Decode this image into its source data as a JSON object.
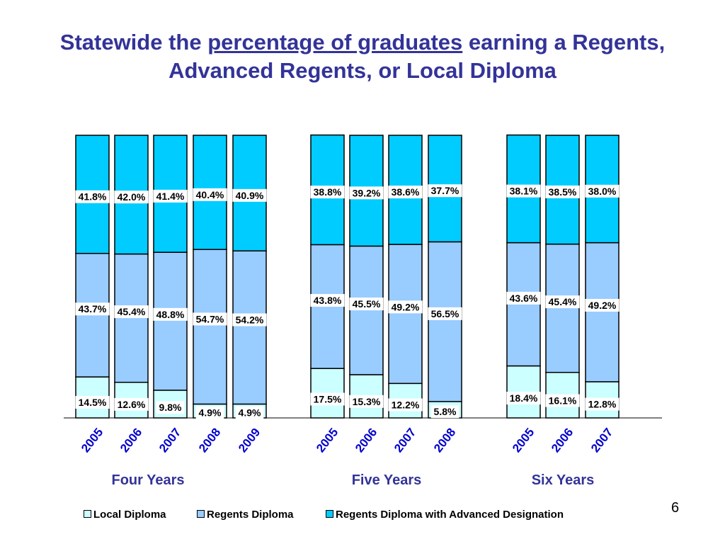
{
  "title": {
    "pre": "Statewide the ",
    "underlined": "percentage of graduates",
    "post": " earning a Regents,",
    "line2": "Advanced Regents, or Local Diploma"
  },
  "slide_number": "6",
  "colors": {
    "local": "#ccffff",
    "regents": "#99ccff",
    "advanced": "#00ccff",
    "group_label": "#333399",
    "year_label": "#0000cc"
  },
  "legend": {
    "local": "Local Diploma",
    "regents": "Regents Diploma",
    "advanced": "Regents Diploma with Advanced Designation"
  },
  "chart_data": {
    "type": "bar",
    "stacked": true,
    "normalized_to_100": true,
    "series_order": [
      "Local Diploma",
      "Regents Diploma",
      "Regents Diploma with Advanced Designation"
    ],
    "groups": [
      {
        "label": "Four Years",
        "categories": [
          "2005",
          "2006",
          "2007",
          "2008",
          "2009"
        ],
        "series": [
          {
            "name": "Local Diploma",
            "values": [
              14.5,
              12.6,
              9.8,
              4.9,
              4.9
            ]
          },
          {
            "name": "Regents Diploma",
            "values": [
              43.7,
              45.4,
              48.8,
              54.7,
              54.2
            ]
          },
          {
            "name": "Regents Diploma with Advanced Designation",
            "values": [
              41.8,
              42.0,
              41.4,
              40.4,
              40.9
            ]
          }
        ]
      },
      {
        "label": "Five Years",
        "categories": [
          "2005",
          "2006",
          "2007",
          "2008"
        ],
        "series": [
          {
            "name": "Local Diploma",
            "values": [
              17.5,
              15.3,
              12.2,
              5.8
            ]
          },
          {
            "name": "Regents Diploma",
            "values": [
              43.8,
              45.5,
              49.2,
              56.5
            ]
          },
          {
            "name": "Regents Diploma with Advanced Designation",
            "values": [
              38.8,
              39.2,
              38.6,
              37.7
            ]
          }
        ]
      },
      {
        "label": "Six Years",
        "categories": [
          "2005",
          "2006",
          "2007"
        ],
        "series": [
          {
            "name": "Local Diploma",
            "values": [
              18.4,
              16.1,
              12.8
            ]
          },
          {
            "name": "Regents Diploma",
            "values": [
              43.6,
              45.4,
              49.2
            ]
          },
          {
            "name": "Regents Diploma with Advanced Designation",
            "values": [
              38.1,
              38.5,
              38.0
            ]
          }
        ]
      }
    ],
    "legend_position": "bottom",
    "grid": false
  }
}
